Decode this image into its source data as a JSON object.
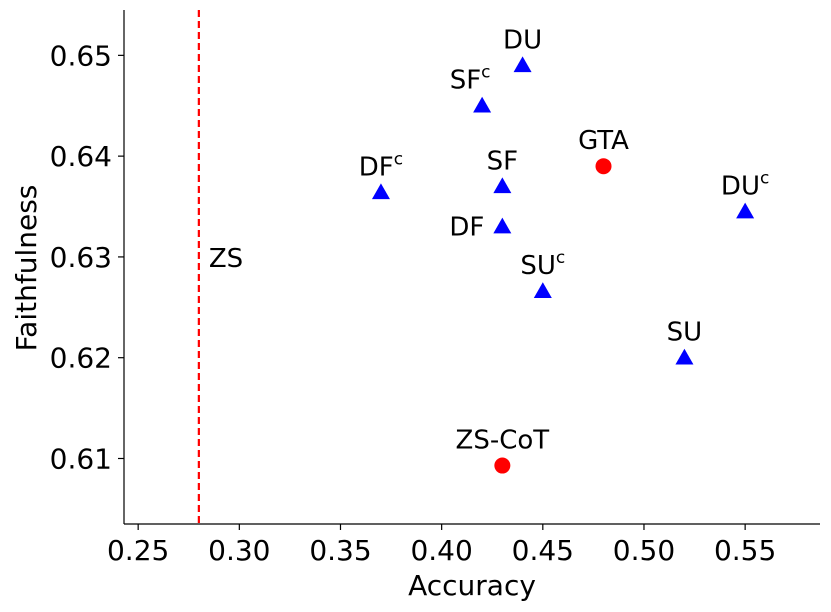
{
  "chart_data": {
    "type": "scatter",
    "title": "",
    "xlabel": "Accuracy",
    "ylabel": "Faithfulness",
    "xlim": [
      0.243,
      0.587
    ],
    "ylim": [
      0.6035,
      0.6545
    ],
    "xticks": [
      0.25,
      0.3,
      0.35,
      0.4,
      0.45,
      0.5,
      0.55
    ],
    "xtick_labels": [
      "0.25",
      "0.30",
      "0.35",
      "0.40",
      "0.45",
      "0.50",
      "0.55"
    ],
    "yticks": [
      0.61,
      0.62,
      0.63,
      0.64,
      0.65
    ],
    "ytick_labels": [
      "0.61",
      "0.62",
      "0.63",
      "0.64",
      "0.65"
    ],
    "grid": false,
    "colors": {
      "triangle": "#0000ff",
      "circle": "#ff0000",
      "reference_line": "#ff0000"
    },
    "reference_line": {
      "label": "ZS",
      "x": 0.28,
      "label_y": 0.63,
      "style": "dashed"
    },
    "points": [
      {
        "label": "DU",
        "sup": "",
        "x": 0.44,
        "y": 0.649,
        "marker": "triangle",
        "label_pos": "above"
      },
      {
        "label": "SF",
        "sup": "c",
        "x": 0.42,
        "y": 0.645,
        "marker": "triangle",
        "label_pos": "above-left"
      },
      {
        "label": "GTA",
        "sup": "",
        "x": 0.48,
        "y": 0.639,
        "marker": "circle",
        "label_pos": "above"
      },
      {
        "label": "SF",
        "sup": "",
        "x": 0.43,
        "y": 0.637,
        "marker": "triangle",
        "label_pos": "above"
      },
      {
        "label": "DF",
        "sup": "c",
        "x": 0.37,
        "y": 0.6364,
        "marker": "triangle",
        "label_pos": "above"
      },
      {
        "label": "DU",
        "sup": "c",
        "x": 0.55,
        "y": 0.6345,
        "marker": "triangle",
        "label_pos": "above"
      },
      {
        "label": "DF",
        "sup": "",
        "x": 0.43,
        "y": 0.633,
        "marker": "triangle",
        "label_pos": "left"
      },
      {
        "label": "SU",
        "sup": "c",
        "x": 0.45,
        "y": 0.6266,
        "marker": "triangle",
        "label_pos": "above"
      },
      {
        "label": "SU",
        "sup": "",
        "x": 0.52,
        "y": 0.62,
        "marker": "triangle",
        "label_pos": "above"
      },
      {
        "label": "ZS-CoT",
        "sup": "",
        "x": 0.43,
        "y": 0.6093,
        "marker": "circle",
        "label_pos": "above"
      }
    ]
  }
}
